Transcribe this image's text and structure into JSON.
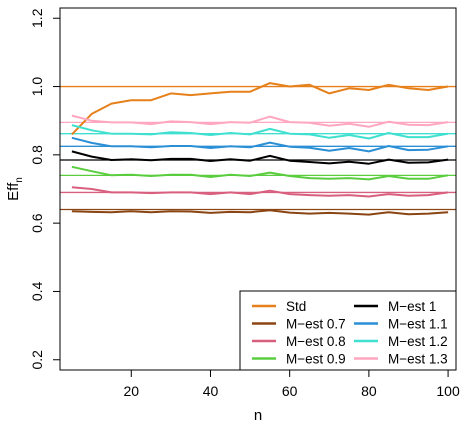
{
  "chart_data": {
    "type": "line",
    "xlabel": "n",
    "ylabel_main": "Eff",
    "ylabel_sub": "n",
    "xlim": [
      2,
      102
    ],
    "ylim": [
      0.17,
      1.23
    ],
    "xticks": [
      20,
      40,
      60,
      80,
      100
    ],
    "yticks": [
      0.2,
      0.4,
      0.6,
      0.8,
      1.0,
      1.2
    ],
    "ytick_labels": [
      "0.2",
      "0.4",
      "0.6",
      "0.8",
      "1.0",
      "1.2"
    ],
    "x": [
      5,
      10,
      15,
      20,
      25,
      30,
      35,
      40,
      45,
      50,
      55,
      60,
      65,
      70,
      75,
      80,
      85,
      90,
      95,
      100
    ],
    "legend_position": "bottom-right",
    "series": [
      {
        "name": "Std",
        "color": "#E6801A",
        "ref": 1.0,
        "values": [
          0.86,
          0.92,
          0.95,
          0.96,
          0.96,
          0.98,
          0.975,
          0.98,
          0.985,
          0.985,
          1.01,
          1.0,
          1.005,
          0.98,
          0.995,
          0.99,
          1.005,
          0.995,
          0.99,
          1.0
        ]
      },
      {
        "name": "M−est 0.7",
        "color": "#8B4513",
        "ref": 0.64,
        "values": [
          0.635,
          0.633,
          0.632,
          0.635,
          0.632,
          0.635,
          0.634,
          0.63,
          0.633,
          0.632,
          0.638,
          0.631,
          0.628,
          0.63,
          0.628,
          0.625,
          0.632,
          0.626,
          0.628,
          0.632
        ]
      },
      {
        "name": "M−est 0.8",
        "color": "#D95F7F",
        "ref": 0.69,
        "values": [
          0.705,
          0.7,
          0.69,
          0.69,
          0.688,
          0.69,
          0.69,
          0.685,
          0.69,
          0.685,
          0.695,
          0.685,
          0.682,
          0.68,
          0.682,
          0.678,
          0.685,
          0.68,
          0.682,
          0.69
        ]
      },
      {
        "name": "M−est 0.9",
        "color": "#5ACD3F",
        "ref": 0.74,
        "values": [
          0.765,
          0.752,
          0.74,
          0.742,
          0.738,
          0.742,
          0.742,
          0.735,
          0.742,
          0.738,
          0.748,
          0.738,
          0.732,
          0.73,
          0.732,
          0.728,
          0.738,
          0.73,
          0.73,
          0.74
        ]
      },
      {
        "name": "M−est 1",
        "color": "#000000",
        "ref": 0.785,
        "values": [
          0.81,
          0.795,
          0.785,
          0.787,
          0.784,
          0.788,
          0.788,
          0.782,
          0.787,
          0.783,
          0.797,
          0.783,
          0.779,
          0.775,
          0.78,
          0.774,
          0.786,
          0.777,
          0.778,
          0.786
        ]
      },
      {
        "name": "M−est 1.1",
        "color": "#2B8FD6",
        "ref": 0.825,
        "values": [
          0.85,
          0.835,
          0.825,
          0.825,
          0.822,
          0.826,
          0.826,
          0.82,
          0.825,
          0.822,
          0.836,
          0.824,
          0.821,
          0.812,
          0.82,
          0.81,
          0.826,
          0.814,
          0.815,
          0.825
        ]
      },
      {
        "name": "M−est 1.2",
        "color": "#40E0D0",
        "ref": 0.862,
        "values": [
          0.887,
          0.872,
          0.862,
          0.862,
          0.86,
          0.866,
          0.864,
          0.858,
          0.864,
          0.86,
          0.876,
          0.862,
          0.86,
          0.85,
          0.858,
          0.848,
          0.864,
          0.852,
          0.852,
          0.862
        ]
      },
      {
        "name": "M−est 1.3",
        "color": "#FFA6C0",
        "ref": 0.895,
        "values": [
          0.915,
          0.9,
          0.895,
          0.895,
          0.89,
          0.898,
          0.896,
          0.89,
          0.896,
          0.894,
          0.912,
          0.896,
          0.894,
          0.885,
          0.891,
          0.882,
          0.897,
          0.888,
          0.887,
          0.896
        ]
      }
    ]
  }
}
